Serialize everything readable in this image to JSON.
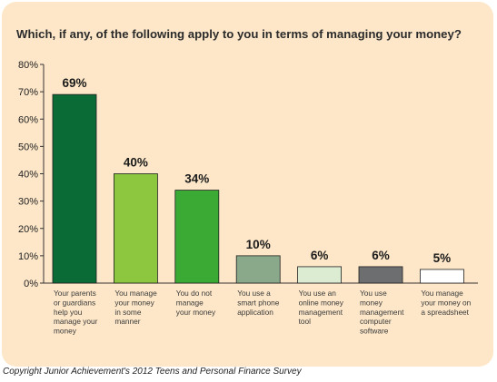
{
  "chart_data": {
    "type": "bar",
    "title": "Which, if any, of the following apply to you in terms of managing your money?",
    "categories": [
      "Your parents or guardians help you manage your money",
      "You manage your money in some manner",
      "You do not manage your money",
      "You use a smart phone application",
      "You use an online money management tool",
      "You use money management computer software",
      "You manage your money on a spreadsheet"
    ],
    "category_lines": [
      [
        "Your parents",
        "or guardians",
        "help you",
        "manage your",
        "money"
      ],
      [
        "You manage",
        "your money",
        "in some",
        "manner"
      ],
      [
        "You do not",
        "manage",
        "your money"
      ],
      [
        "You use a",
        "smart phone",
        "application"
      ],
      [
        "You use an",
        "online money",
        "management",
        "tool"
      ],
      [
        "You use",
        "money",
        "management",
        "computer",
        "software"
      ],
      [
        "You manage",
        "your money on",
        "a spreadsheet"
      ]
    ],
    "values": [
      69,
      40,
      34,
      10,
      6,
      6,
      5
    ],
    "value_labels": [
      "69%",
      "40%",
      "34%",
      "10%",
      "6%",
      "6%",
      "5%"
    ],
    "bar_colors": [
      "#0b6b37",
      "#8dc63f",
      "#3aaa35",
      "#8aa98a",
      "#dcecd2",
      "#6d6e70",
      "#ffffff"
    ],
    "ylim": [
      0,
      80
    ],
    "yticks": [
      "0%",
      "10%",
      "20%",
      "30%",
      "40%",
      "50%",
      "60%",
      "70%",
      "80%"
    ],
    "grid": false,
    "xlabel": "",
    "ylabel": ""
  },
  "copyright": "Copyright Junior Achievement's 2012 Teens and Personal Finance Survey"
}
